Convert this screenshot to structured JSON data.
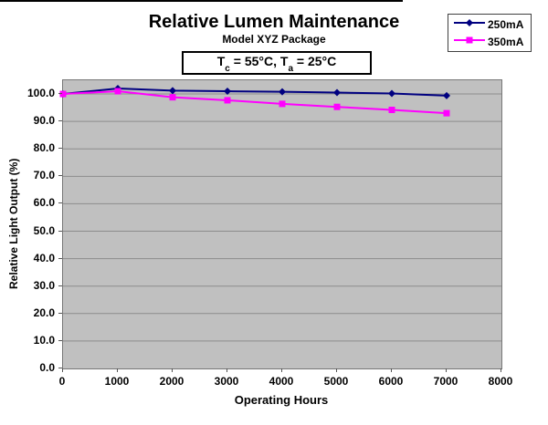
{
  "header": {
    "title": "Relative Lumen Maintenance",
    "subtitle": "Model XYZ Package",
    "param_box": {
      "t1": "T",
      "sub1": "c",
      "mid1": " = 55°C, T",
      "sub2": "a",
      "mid2": " = 25°C"
    }
  },
  "chart_data": {
    "type": "line",
    "title": "Relative Lumen Maintenance",
    "subtitle": "Model XYZ Package",
    "annotation": "Tc = 55°C, Ta = 25°C",
    "xlabel": "Operating Hours",
    "ylabel": "Relative Light Output (%)",
    "x": [
      0,
      1000,
      2000,
      3000,
      4000,
      5000,
      6000,
      7000
    ],
    "series": [
      {
        "name": "250mA",
        "color": "#000080",
        "marker": "diamond",
        "values": [
          100.0,
          102.0,
          101.2,
          101.0,
          100.8,
          100.5,
          100.2,
          99.4
        ]
      },
      {
        "name": "350mA",
        "color": "#FF00FF",
        "marker": "square",
        "values": [
          100.0,
          101.0,
          98.8,
          97.7,
          96.4,
          95.3,
          94.2,
          93.0
        ]
      }
    ],
    "xlim": [
      0,
      8000
    ],
    "ylim": [
      0,
      105
    ],
    "xticks": [
      0,
      1000,
      2000,
      3000,
      4000,
      5000,
      6000,
      7000,
      8000
    ],
    "yticks": [
      "0.0",
      "10.0",
      "20.0",
      "30.0",
      "40.0",
      "50.0",
      "60.0",
      "70.0",
      "80.0",
      "90.0",
      "100.0"
    ],
    "grid": "horizontal",
    "legend_position": "top-right",
    "plot_bg": "#C0C0C0",
    "grid_color": "#8C8C8C",
    "axis_color": "#555555"
  }
}
